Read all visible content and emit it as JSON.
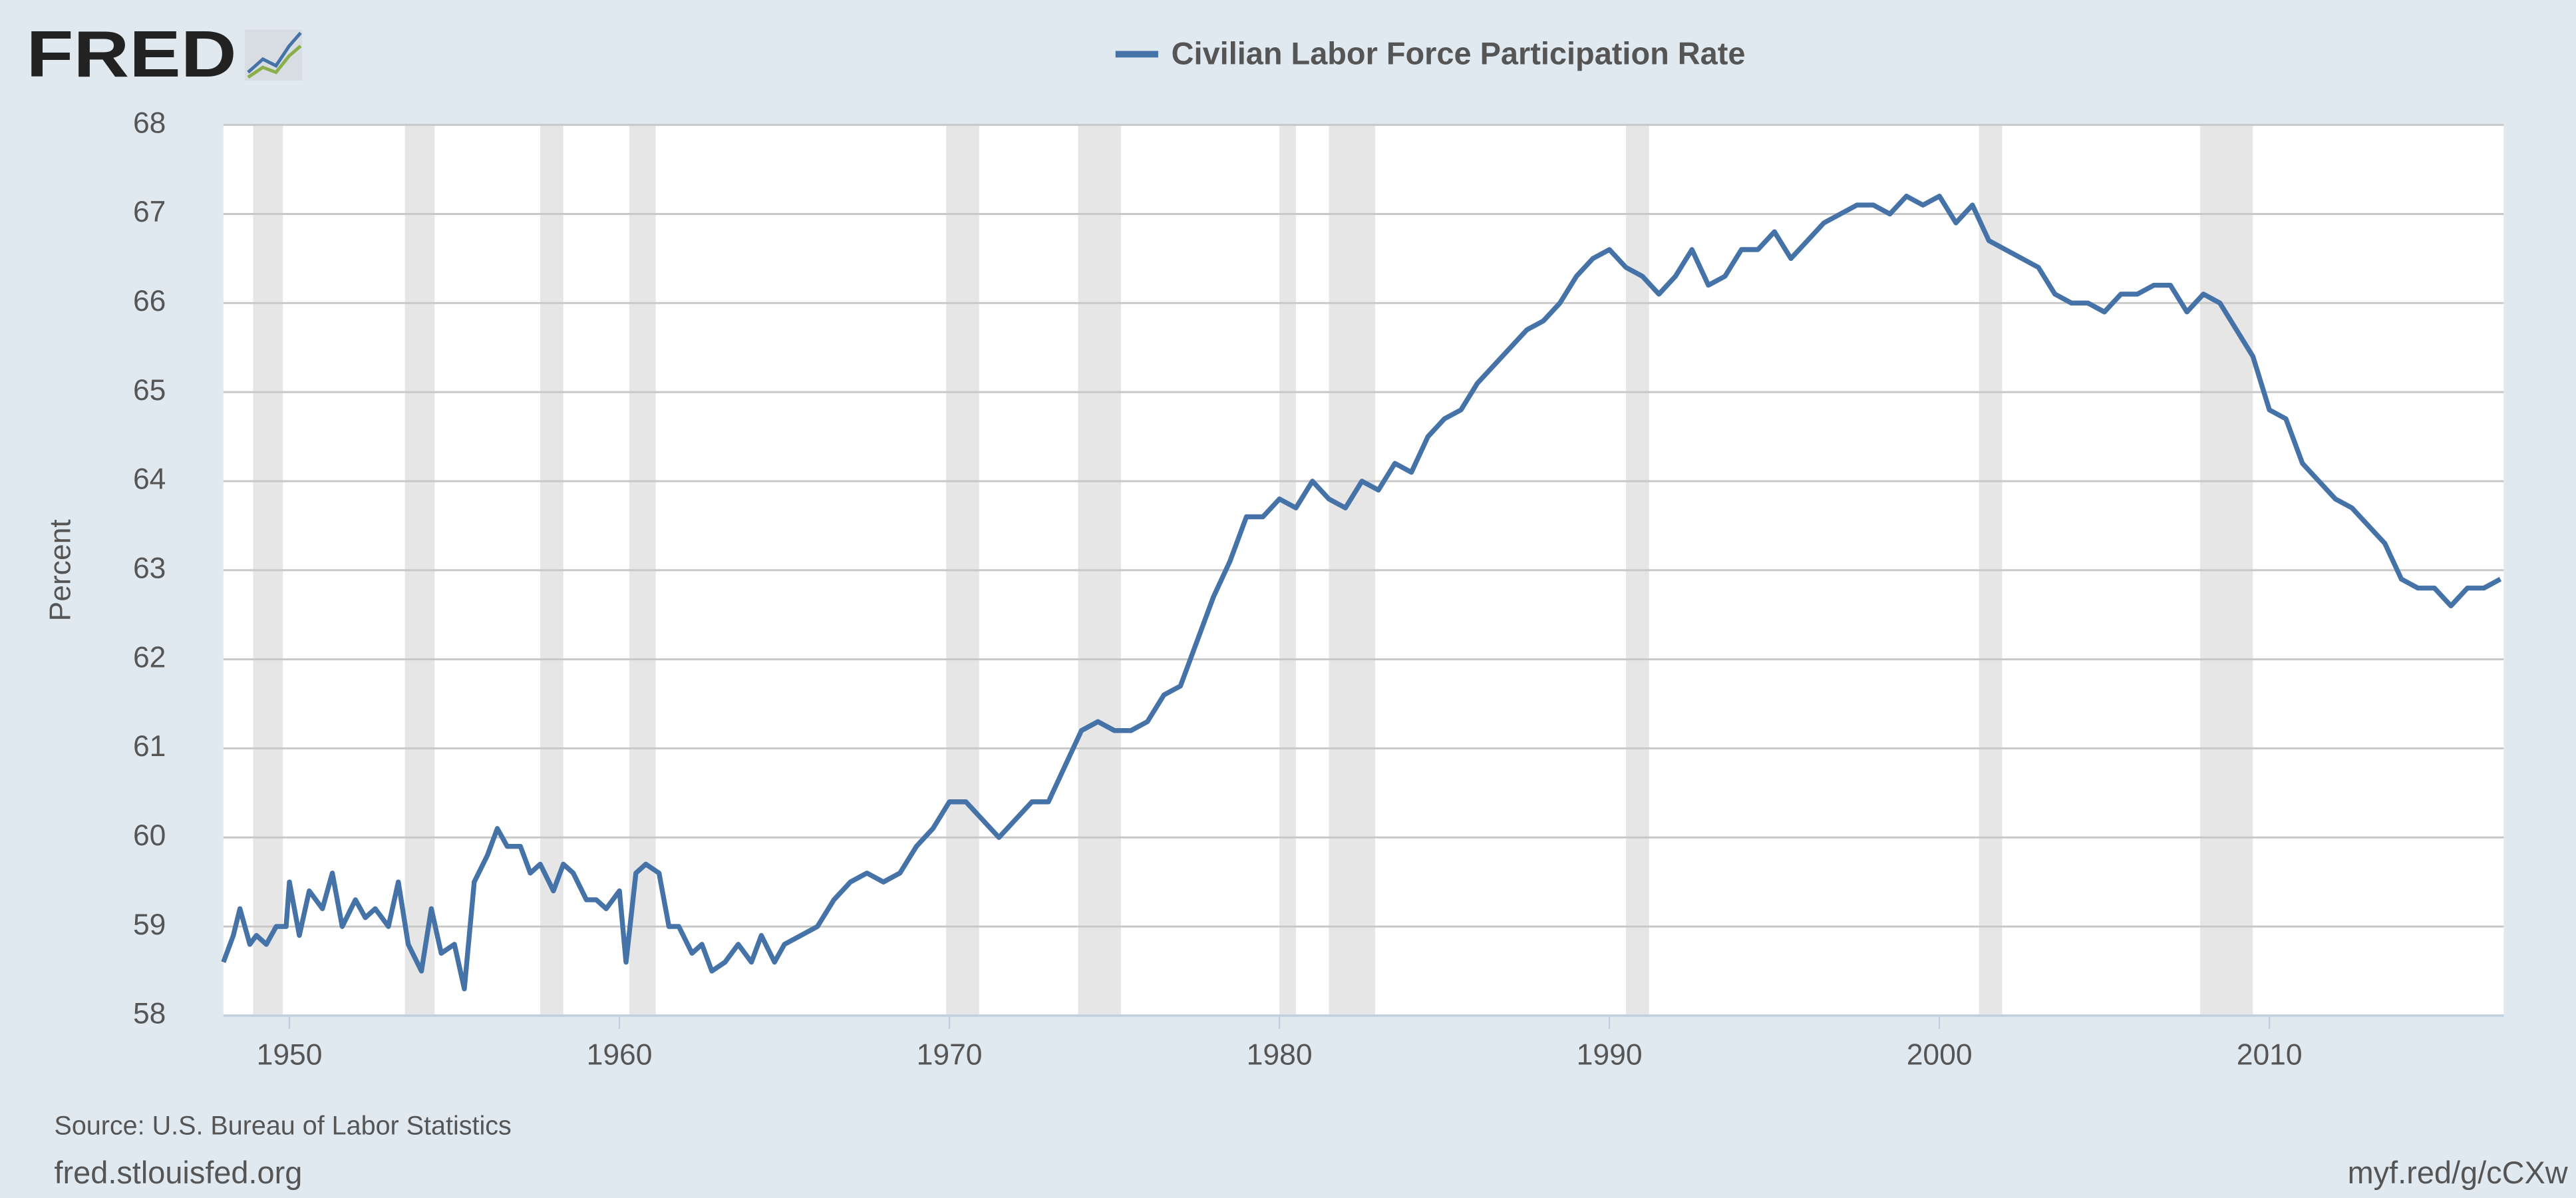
{
  "logo": "FRED",
  "footer": {
    "source": "Source: U.S. Bureau of Labor Statistics",
    "site": "fred.stlouisfed.org",
    "link": "myf.red/g/cCXw"
  },
  "chart_data": {
    "type": "line",
    "ylabel": "Percent",
    "grid": true,
    "recession_color": "#e6e6e6",
    "recessions": [
      [
        1948.9,
        1949.8
      ],
      [
        1953.5,
        1954.4
      ],
      [
        1957.6,
        1958.3
      ],
      [
        1960.3,
        1961.1
      ],
      [
        1969.9,
        1970.9
      ],
      [
        1973.9,
        1975.2
      ],
      [
        1980.0,
        1980.5
      ],
      [
        1981.5,
        1982.9
      ],
      [
        1990.5,
        1991.2
      ],
      [
        2001.2,
        2001.9
      ],
      [
        2007.9,
        2009.5
      ]
    ],
    "xlim": [
      1948,
      2017.1
    ],
    "ylim": [
      58,
      68
    ],
    "xticks": [
      1950,
      1960,
      1970,
      1980,
      1990,
      2000,
      2010
    ],
    "yticks": [
      58,
      59,
      60,
      61,
      62,
      63,
      64,
      65,
      66,
      67,
      68
    ],
    "x": [
      1948.0,
      1948.3,
      1948.5,
      1948.8,
      1949.0,
      1949.3,
      1949.6,
      1949.9,
      1950.0,
      1950.3,
      1950.6,
      1951.0,
      1951.3,
      1951.6,
      1952.0,
      1952.3,
      1952.6,
      1953.0,
      1953.3,
      1953.6,
      1954.0,
      1954.3,
      1954.6,
      1955.0,
      1955.3,
      1955.6,
      1956.0,
      1956.3,
      1956.6,
      1957.0,
      1957.3,
      1957.6,
      1958.0,
      1958.3,
      1958.6,
      1959.0,
      1959.3,
      1959.6,
      1960.0,
      1960.2,
      1960.5,
      1960.8,
      1961.2,
      1961.5,
      1961.8,
      1962.2,
      1962.5,
      1962.8,
      1963.2,
      1963.6,
      1964.0,
      1964.3,
      1964.7,
      1965.0,
      1965.5,
      1966.0,
      1966.5,
      1967.0,
      1967.5,
      1968.0,
      1968.5,
      1969.0,
      1969.5,
      1970.0,
      1970.5,
      1971.0,
      1971.5,
      1972.0,
      1972.5,
      1973.0,
      1973.5,
      1974.0,
      1974.5,
      1975.0,
      1975.5,
      1976.0,
      1976.5,
      1977.0,
      1977.5,
      1978.0,
      1978.5,
      1979.0,
      1979.5,
      1980.0,
      1980.5,
      1981.0,
      1981.5,
      1982.0,
      1982.5,
      1983.0,
      1983.5,
      1984.0,
      1984.5,
      1985.0,
      1985.5,
      1986.0,
      1986.5,
      1987.0,
      1987.5,
      1988.0,
      1988.5,
      1989.0,
      1989.5,
      1990.0,
      1990.5,
      1991.0,
      1991.5,
      1992.0,
      1992.5,
      1993.0,
      1993.5,
      1994.0,
      1994.5,
      1995.0,
      1995.5,
      1996.0,
      1996.5,
      1997.0,
      1997.5,
      1998.0,
      1998.5,
      1999.0,
      1999.5,
      2000.0,
      2000.5,
      2001.0,
      2001.5,
      2002.0,
      2002.5,
      2003.0,
      2003.5,
      2004.0,
      2004.5,
      2005.0,
      2005.5,
      2006.0,
      2006.5,
      2007.0,
      2007.5,
      2008.0,
      2008.5,
      2009.0,
      2009.5,
      2010.0,
      2010.5,
      2011.0,
      2011.5,
      2012.0,
      2012.5,
      2013.0,
      2013.5,
      2014.0,
      2014.5,
      2015.0,
      2015.5,
      2016.0,
      2016.5,
      2017.0
    ],
    "series": [
      {
        "name": "Civilian Labor Force Participation Rate",
        "color": "#4572a7",
        "values": [
          58.6,
          58.9,
          59.2,
          58.8,
          58.9,
          58.8,
          59.0,
          59.0,
          59.5,
          58.9,
          59.4,
          59.2,
          59.6,
          59.0,
          59.3,
          59.1,
          59.2,
          59.0,
          59.5,
          58.8,
          58.5,
          59.2,
          58.7,
          58.8,
          58.3,
          59.5,
          59.8,
          60.1,
          59.9,
          59.9,
          59.6,
          59.7,
          59.4,
          59.7,
          59.6,
          59.3,
          59.3,
          59.2,
          59.4,
          58.6,
          59.6,
          59.7,
          59.6,
          59.0,
          59.0,
          58.7,
          58.8,
          58.5,
          58.6,
          58.8,
          58.6,
          58.9,
          58.6,
          58.8,
          58.9,
          59.0,
          59.3,
          59.5,
          59.6,
          59.5,
          59.6,
          59.9,
          60.1,
          60.4,
          60.4,
          60.2,
          60.0,
          60.2,
          60.4,
          60.4,
          60.8,
          61.2,
          61.3,
          61.2,
          61.2,
          61.3,
          61.6,
          61.7,
          62.2,
          62.7,
          63.1,
          63.6,
          63.6,
          63.8,
          63.7,
          64.0,
          63.8,
          63.7,
          64.0,
          63.9,
          64.2,
          64.1,
          64.5,
          64.7,
          64.8,
          65.1,
          65.3,
          65.5,
          65.7,
          65.8,
          66.0,
          66.3,
          66.5,
          66.6,
          66.4,
          66.3,
          66.1,
          66.3,
          66.6,
          66.2,
          66.3,
          66.6,
          66.6,
          66.8,
          66.5,
          66.7,
          66.9,
          67.0,
          67.1,
          67.1,
          67.0,
          67.2,
          67.1,
          67.2,
          66.9,
          67.1,
          66.7,
          66.6,
          66.5,
          66.4,
          66.1,
          66.0,
          66.0,
          65.9,
          66.1,
          66.1,
          66.2,
          66.2,
          65.9,
          66.1,
          66.0,
          65.7,
          65.4,
          64.8,
          64.7,
          64.2,
          64.0,
          63.8,
          63.7,
          63.5,
          63.3,
          62.9,
          62.8,
          62.8,
          62.6,
          62.8,
          62.8,
          62.9
        ]
      }
    ]
  }
}
